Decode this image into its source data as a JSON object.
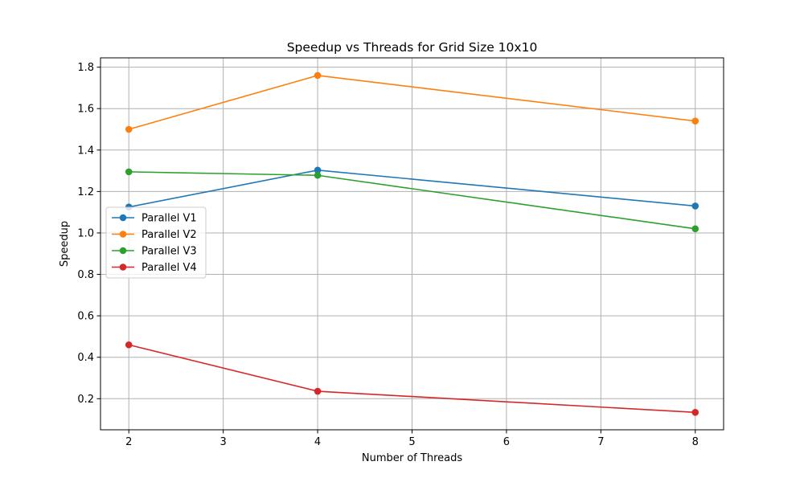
{
  "chart_data": {
    "type": "line",
    "title": "Speedup vs Threads for Grid Size 10x10",
    "xlabel": "Number of Threads",
    "ylabel": "Speedup",
    "x": [
      2,
      4,
      8
    ],
    "xlim": [
      1.7,
      8.3
    ],
    "ylim": [
      0.05,
      1.845
    ],
    "xticks": [
      2,
      3,
      4,
      5,
      6,
      7,
      8
    ],
    "yticks": [
      0.2,
      0.4,
      0.6,
      0.8,
      1.0,
      1.2,
      1.4,
      1.6,
      1.8
    ],
    "grid": true,
    "legend_position": "center-left",
    "series": [
      {
        "name": "Parallel V1",
        "color": "#1f77b4",
        "values": [
          1.125,
          1.303,
          1.13
        ]
      },
      {
        "name": "Parallel V2",
        "color": "#ff7f0e",
        "values": [
          1.5,
          1.76,
          1.54
        ]
      },
      {
        "name": "Parallel V3",
        "color": "#2ca02c",
        "values": [
          1.295,
          1.278,
          1.02
        ]
      },
      {
        "name": "Parallel V4",
        "color": "#d62728",
        "values": [
          0.46,
          0.236,
          0.134
        ]
      }
    ]
  }
}
